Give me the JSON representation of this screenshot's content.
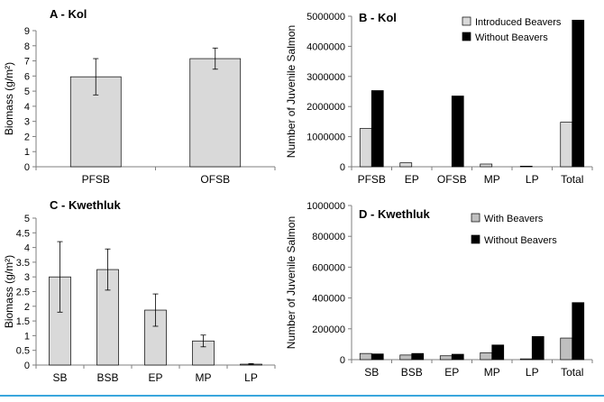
{
  "figure": {
    "border_color": "#3aa6dd",
    "bar_gray": "#d9d9d9",
    "bar_black": "#000000",
    "bar_mid_gray": "#bfbfbf"
  },
  "chart_data": [
    {
      "id": "A",
      "type": "bar",
      "title": "A - Kol",
      "xlabel": "",
      "ylabel": "Biomass (g/m²)",
      "ylim": [
        0,
        9
      ],
      "yticks": [
        0,
        1,
        2,
        3,
        4,
        5,
        6,
        7,
        8,
        9
      ],
      "ytick_labels": [
        "0",
        "1",
        "2",
        "3",
        "4",
        "5",
        "6",
        "7",
        "8",
        "9"
      ],
      "categories": [
        "PFSB",
        "OFSB"
      ],
      "series": [
        {
          "name": "Biomass",
          "values": [
            5.95,
            7.15
          ],
          "errors": [
            1.2,
            0.7
          ],
          "color": "#d9d9d9"
        }
      ]
    },
    {
      "id": "B",
      "type": "bar",
      "title": "B - Kol",
      "xlabel": "",
      "ylabel": "Number of Juvenile Salmon",
      "ylim": [
        0,
        5000000
      ],
      "yticks": [
        0,
        1000000,
        2000000,
        3000000,
        4000000,
        5000000
      ],
      "ytick_labels": [
        "0",
        "1000000",
        "2000000",
        "3000000",
        "4000000",
        "5000000"
      ],
      "categories": [
        "PFSB",
        "EP",
        "OFSB",
        "MP",
        "LP",
        "Total"
      ],
      "legend": [
        "Introduced Beavers",
        "Without Beavers"
      ],
      "series": [
        {
          "name": "Introduced Beavers",
          "values": [
            1270000,
            130000,
            0,
            90000,
            20000,
            1480000
          ],
          "color": "#d9d9d9"
        },
        {
          "name": "Without Beavers",
          "values": [
            2530000,
            0,
            2350000,
            0,
            0,
            4870000
          ],
          "color": "#000000"
        }
      ]
    },
    {
      "id": "C",
      "type": "bar",
      "title": "C - Kwethluk",
      "xlabel": "",
      "ylabel": "Biomass (g/m²)",
      "ylim": [
        0,
        5
      ],
      "yticks": [
        0,
        0.5,
        1,
        1.5,
        2,
        2.5,
        3,
        3.5,
        4,
        4.5,
        5
      ],
      "ytick_labels": [
        "0",
        "0.5",
        "1",
        "1.5",
        "2",
        "2.5",
        "3",
        "3.5",
        "4",
        "4.5",
        "5"
      ],
      "categories": [
        "SB",
        "BSB",
        "EP",
        "MP",
        "LP"
      ],
      "series": [
        {
          "name": "Biomass",
          "values": [
            3.0,
            3.25,
            1.87,
            0.82,
            0.03
          ],
          "errors": [
            1.2,
            0.7,
            0.55,
            0.2,
            0.02
          ],
          "color": "#d9d9d9"
        }
      ]
    },
    {
      "id": "D",
      "type": "bar",
      "title": "D - Kwethluk",
      "xlabel": "",
      "ylabel": "Number of Juvenile Salmon",
      "ylim": [
        0,
        1000000
      ],
      "yticks": [
        0,
        200000,
        400000,
        600000,
        800000,
        1000000
      ],
      "ytick_labels": [
        "0",
        "200000",
        "400000",
        "600000",
        "800000",
        "1000000"
      ],
      "categories": [
        "SB",
        "BSB",
        "EP",
        "MP",
        "LP",
        "Total"
      ],
      "legend": [
        "With Beavers",
        "Without Beavers"
      ],
      "series": [
        {
          "name": "With Beavers",
          "values": [
            40000,
            30000,
            25000,
            45000,
            5000,
            140000
          ],
          "color": "#bfbfbf"
        },
        {
          "name": "Without Beavers",
          "values": [
            37000,
            40000,
            35000,
            95000,
            150000,
            370000
          ],
          "color": "#000000"
        }
      ]
    }
  ]
}
